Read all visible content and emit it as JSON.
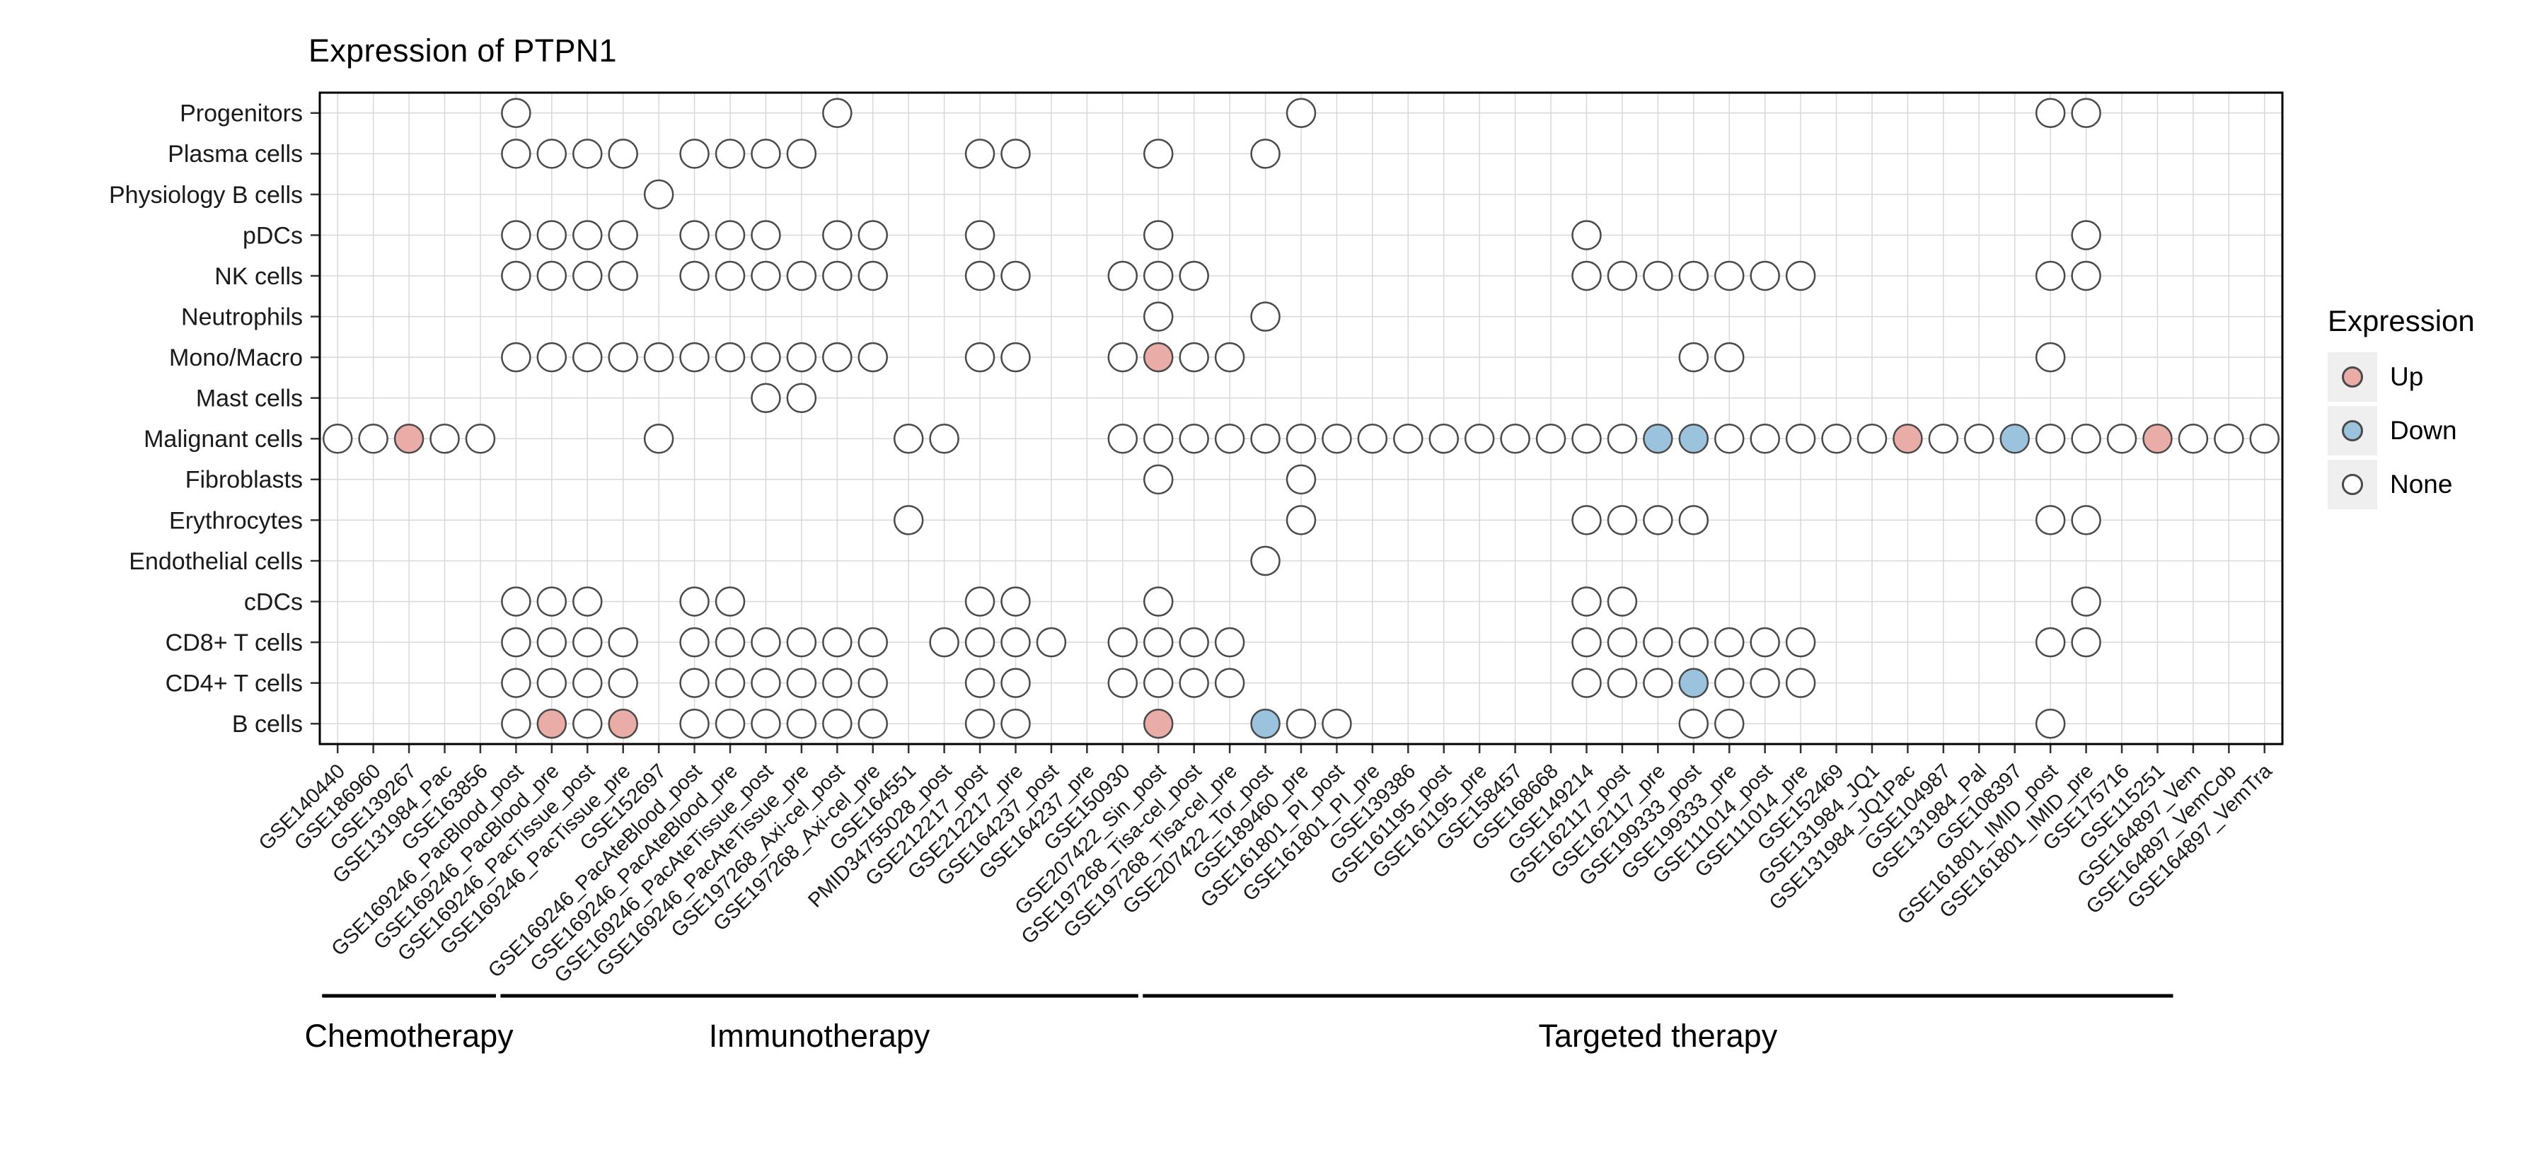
{
  "title": "Expression of PTPN1",
  "legend": {
    "title": "Expression",
    "items": [
      {
        "label": "Up",
        "value": "up"
      },
      {
        "label": "Down",
        "value": "down"
      },
      {
        "label": "None",
        "value": "none"
      }
    ]
  },
  "colors": {
    "up": "#E9ACA7",
    "down": "#9CC3DE",
    "none": "#FFFFFF",
    "outline": "#4a4a4a",
    "grid": "#D8D8D8",
    "panel_border": "#000000"
  },
  "chart_data": {
    "type": "scatter",
    "title": "Expression of PTPN1",
    "legend_position": "right",
    "grid": true,
    "rows": [
      "Progenitors",
      "Plasma cells",
      "Physiology B cells",
      "pDCs",
      "NK cells",
      "Neutrophils",
      "Mono/Macro",
      "Mast cells",
      "Malignant cells",
      "Fibroblasts",
      "Erythrocytes",
      "Endothelial cells",
      "cDCs",
      "CD8+ T cells",
      "CD4+ T cells",
      "B cells"
    ],
    "columns": [
      "GSE140440",
      "GSE186960",
      "GSE139267",
      "GSE131984_Pac",
      "GSE163856",
      "GSE169246_PacBlood_post",
      "GSE169246_PacBlood_pre",
      "GSE169246_PacTissue_post",
      "GSE169246_PacTissue_pre",
      "GSE152697",
      "GSE169246_PacAteBlood_post",
      "GSE169246_PacAteBlood_pre",
      "GSE169246_PacAteTissue_post",
      "GSE169246_PacAteTissue_pre",
      "GSE197268_Axi-cel_post",
      "GSE197268_Axi-cel_pre",
      "GSE164551",
      "PMID34755028_post",
      "GSE212217_post",
      "GSE212217_pre",
      "GSE164237_post",
      "GSE164237_pre",
      "GSE150930",
      "GSE207422_Sin_post",
      "GSE197268_Tisa-cel_post",
      "GSE197268_Tisa-cel_pre",
      "GSE207422_Tor_post",
      "GSE189460_pre",
      "GSE161801_PI_post",
      "GSE161801_PI_pre",
      "GSE139386",
      "GSE161195_post",
      "GSE161195_pre",
      "GSE158457",
      "GSE168668",
      "GSE149214",
      "GSE162117_post",
      "GSE162117_pre",
      "GSE199333_post",
      "GSE199333_pre",
      "GSE111014_post",
      "GSE111014_pre",
      "GSE152469",
      "GSE131984_JQ1",
      "GSE131984_JQ1Pac",
      "GSE104987",
      "GSE131984_Pal",
      "GSE108397",
      "GSE161801_IMID_post",
      "GSE161801_IMID_pre",
      "GSE175716",
      "GSE115251",
      "GSE164897_Vem",
      "GSE164897_VemCob",
      "GSE164897_VemTra"
    ],
    "groups": [
      {
        "label": "Chemotherapy",
        "from": 0,
        "to": 4
      },
      {
        "label": "Immunotherapy",
        "from": 5,
        "to": 22
      },
      {
        "label": "Targeted therapy",
        "from": 23,
        "to": 51
      }
    ],
    "cells": {
      "Progenitors": {
        "none": [
          5,
          14,
          27,
          48,
          49
        ]
      },
      "Plasma cells": {
        "none": [
          5,
          6,
          7,
          8,
          10,
          11,
          12,
          13,
          18,
          19,
          23,
          26
        ]
      },
      "Physiology B cells": {
        "none": [
          9
        ]
      },
      "pDCs": {
        "none": [
          5,
          6,
          7,
          8,
          10,
          11,
          12,
          14,
          15,
          18,
          23,
          35,
          49
        ]
      },
      "NK cells": {
        "none": [
          5,
          6,
          7,
          8,
          10,
          11,
          12,
          13,
          14,
          15,
          18,
          19,
          22,
          23,
          24,
          35,
          36,
          37,
          38,
          39,
          40,
          41,
          48,
          49
        ]
      },
      "Neutrophils": {
        "none": [
          23,
          26
        ]
      },
      "Mono/Macro": {
        "none": [
          5,
          6,
          7,
          8,
          9,
          10,
          11,
          12,
          13,
          14,
          15,
          18,
          19,
          22,
          24,
          25,
          38,
          39,
          48
        ],
        "up": [
          23
        ]
      },
      "Mast cells": {
        "none": [
          12,
          13
        ]
      },
      "Malignant cells": {
        "none": [
          0,
          1,
          3,
          4,
          9,
          16,
          17,
          22,
          23,
          24,
          25,
          26,
          27,
          28,
          29,
          30,
          31,
          32,
          33,
          34,
          35,
          36,
          39,
          40,
          41,
          42,
          43,
          45,
          46,
          48,
          49,
          50,
          52,
          53,
          54
        ],
        "up": [
          2,
          44,
          51
        ],
        "down": [
          37,
          38,
          47
        ]
      },
      "Fibroblasts": {
        "none": [
          23,
          27
        ]
      },
      "Erythrocytes": {
        "none": [
          16,
          27,
          35,
          36,
          37,
          38,
          48,
          49
        ]
      },
      "Endothelial cells": {
        "none": [
          26
        ]
      },
      "cDCs": {
        "none": [
          5,
          6,
          7,
          10,
          11,
          18,
          19,
          23,
          35,
          36,
          49
        ]
      },
      "CD8+ T cells": {
        "none": [
          5,
          6,
          7,
          8,
          10,
          11,
          12,
          13,
          14,
          15,
          17,
          18,
          19,
          20,
          22,
          23,
          24,
          25,
          35,
          36,
          37,
          38,
          39,
          40,
          41,
          48,
          49
        ]
      },
      "CD4+ T cells": {
        "none": [
          5,
          6,
          7,
          8,
          10,
          11,
          12,
          13,
          14,
          15,
          18,
          19,
          22,
          23,
          24,
          25,
          35,
          36,
          37,
          39,
          40,
          41
        ],
        "down": [
          38
        ]
      },
      "B cells": {
        "none": [
          5,
          7,
          10,
          11,
          12,
          13,
          14,
          15,
          18,
          19,
          27,
          28,
          38,
          39,
          48
        ],
        "up": [
          6,
          8,
          23
        ],
        "down": [
          26
        ]
      }
    }
  }
}
